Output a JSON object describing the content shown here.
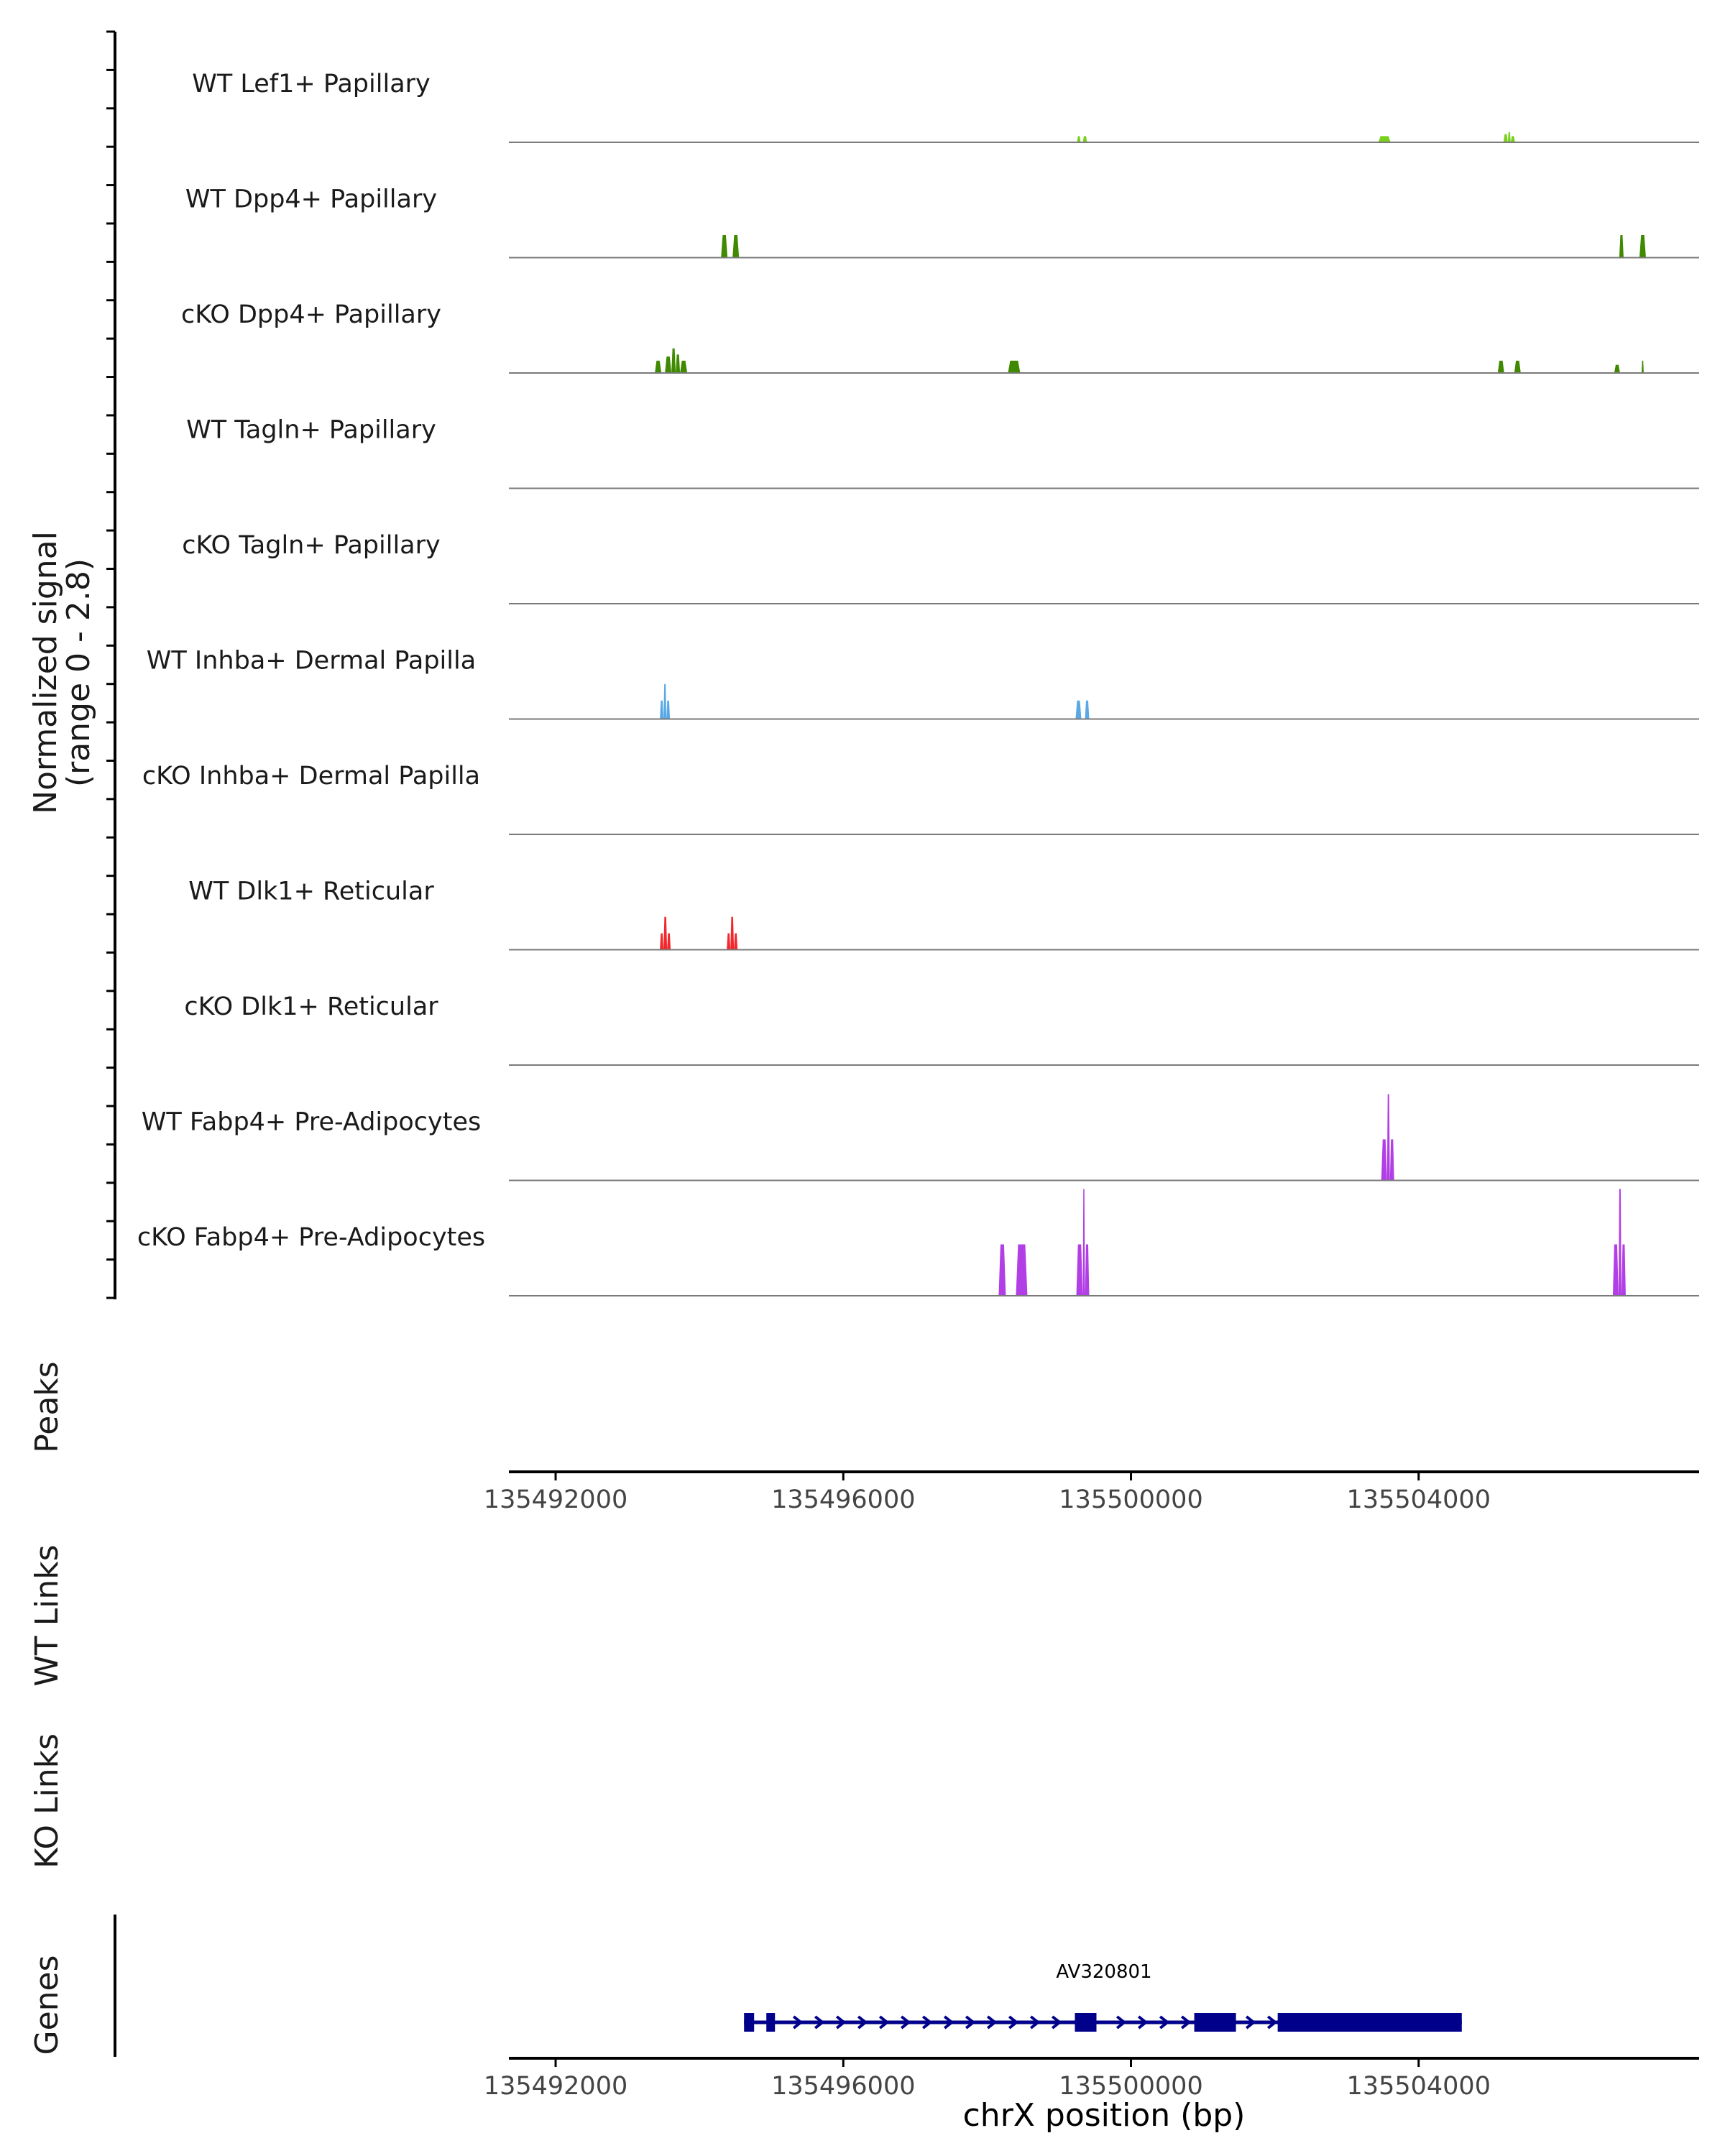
{
  "chart_data": {
    "type": "area",
    "chromosome": "chrX",
    "xlabel": "chrX position (bp)",
    "xlim": [
      135491350,
      135507900
    ],
    "xticks": [
      "135492000",
      "135496000",
      "135500000",
      "135504000"
    ],
    "tick_values": [
      135492000,
      135496000,
      135500000,
      135504000
    ],
    "coverage": {
      "ylabel_line1": "Normalized signal",
      "ylabel_line2": "(range 0 - 2.8)",
      "ylim": [
        0,
        2.8
      ],
      "tracks": [
        {
          "name": "WT Lef1+ Papillary",
          "color": "#7ad11c",
          "peaks": [
            [
              135499250,
              135499300,
              0.15
            ],
            [
              135499330,
              135499390,
              0.15
            ],
            [
              135503440,
              135503610,
              0.15
            ],
            [
              135505180,
              135505240,
              0.2
            ],
            [
              135505240,
              135505280,
              0.25
            ],
            [
              135505280,
              135505340,
              0.15
            ]
          ]
        },
        {
          "name": "WT Dpp4+ Papillary",
          "color": "#3f8a00",
          "peaks": [
            [
              135494300,
              135494390,
              0.55
            ],
            [
              135494460,
              135494550,
              0.55
            ],
            [
              135506790,
              135506850,
              0.55
            ],
            [
              135507070,
              135507160,
              0.55
            ]
          ]
        },
        {
          "name": "cKO Dpp4+ Papillary",
          "color": "#3f8a00",
          "peaks": [
            [
              135493380,
              135493470,
              0.3
            ],
            [
              135493520,
              135493610,
              0.4
            ],
            [
              135493610,
              135493670,
              0.6
            ],
            [
              135493670,
              135493730,
              0.45
            ],
            [
              135493730,
              135493830,
              0.3
            ],
            [
              135498290,
              135498460,
              0.3
            ],
            [
              135505100,
              135505190,
              0.3
            ],
            [
              135505330,
              135505420,
              0.3
            ],
            [
              135506720,
              135506800,
              0.2
            ],
            [
              135507100,
              135507130,
              0.3
            ]
          ]
        },
        {
          "name": "WT Tagln+ Papillary",
          "color": "#2e7d32",
          "peaks": []
        },
        {
          "name": "cKO Tagln+ Papillary",
          "color": "#2e7d32",
          "peaks": []
        },
        {
          "name": "WT Inhba+ Dermal Papilla",
          "color": "#5aa9e6",
          "peaks": [
            [
              135493450,
              135493500,
              0.45
            ],
            [
              135493500,
              135493540,
              0.85
            ],
            [
              135493540,
              135493590,
              0.45
            ],
            [
              135499230,
              135499310,
              0.45
            ],
            [
              135499360,
              135499420,
              0.45
            ]
          ]
        },
        {
          "name": "cKO Inhba+ Dermal Papilla",
          "color": "#5aa9e6",
          "peaks": []
        },
        {
          "name": "WT Dlk1+ Reticular",
          "color": "#f2282c",
          "peaks": [
            [
              135493450,
              135493500,
              0.4
            ],
            [
              135493500,
              135493550,
              0.8
            ],
            [
              135493550,
              135493600,
              0.4
            ],
            [
              135494380,
              135494430,
              0.4
            ],
            [
              135494430,
              135494480,
              0.8
            ],
            [
              135494480,
              135494530,
              0.4
            ]
          ]
        },
        {
          "name": "cKO Dlk1+ Reticular",
          "color": "#f2282c",
          "peaks": []
        },
        {
          "name": "WT Fabp4+ Pre-Adipocytes",
          "color": "#b23fe6",
          "peaks": [
            [
              135503480,
              135503560,
              1.0
            ],
            [
              135503560,
              135503600,
              2.1
            ],
            [
              135503600,
              135503660,
              1.0
            ]
          ]
        },
        {
          "name": "cKO Fabp4+ Pre-Adipocytes",
          "color": "#b23fe6",
          "peaks": [
            [
              135498160,
              135498260,
              1.25
            ],
            [
              135498400,
              135498560,
              1.25
            ],
            [
              135499240,
              135499330,
              1.25
            ],
            [
              135499330,
              135499360,
              2.6
            ],
            [
              135499360,
              135499420,
              1.25
            ],
            [
              135506700,
              135506780,
              1.25
            ],
            [
              135506780,
              135506820,
              2.6
            ],
            [
              135506820,
              135506880,
              1.25
            ]
          ]
        }
      ]
    },
    "panels": {
      "peaks": "Peaks",
      "wt_links": "WT Links",
      "ko_links": "KO Links",
      "genes": "Genes"
    },
    "gene": {
      "name": "AV320801",
      "color": "#00008b",
      "strand": "+",
      "start": 135494620,
      "end": 135504600,
      "exons": [
        [
          135494620,
          135494760
        ],
        [
          135494930,
          135495050
        ],
        [
          135499220,
          135499520
        ],
        [
          135500880,
          135501460
        ],
        [
          135502040,
          135504600
        ]
      ]
    }
  }
}
